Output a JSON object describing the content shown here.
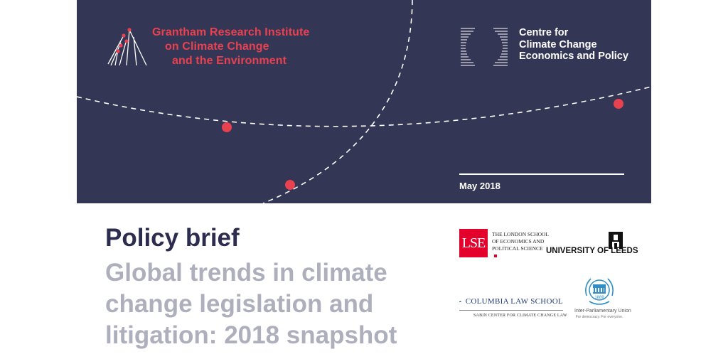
{
  "header": {
    "grantham": {
      "lines": [
        "Grantham Research Institute",
        "on Climate Change",
        "and the Environment"
      ],
      "color": "#e8414f"
    },
    "cccep": {
      "lines": [
        "Centre for",
        "Climate Change",
        "Economics and Policy"
      ]
    },
    "date": "May 2018",
    "background": "#343656",
    "dot_color": "#e8414f"
  },
  "main": {
    "title": "Policy brief",
    "subtitle_lines": [
      "Global trends in climate",
      "change legislation and",
      "litigation: 2018 snapshot"
    ]
  },
  "partners": {
    "lse": {
      "box": "LSE",
      "lines": [
        "THE LONDON SCHOOL",
        "OF ECONOMICS AND",
        "POLITICAL SCIENCE"
      ],
      "color": "#e4022d"
    },
    "leeds": {
      "name": "UNIVERSITY OF LEEDS"
    },
    "columbia": {
      "name": "COLUMBIA LAW SCHOOL",
      "sub": "SABIN CENTER FOR CLIMATE CHANGE LAW"
    },
    "ipu": {
      "year": "1889",
      "name": "Inter-Parliamentary Union",
      "tagline": "For democracy. For everyone."
    }
  }
}
